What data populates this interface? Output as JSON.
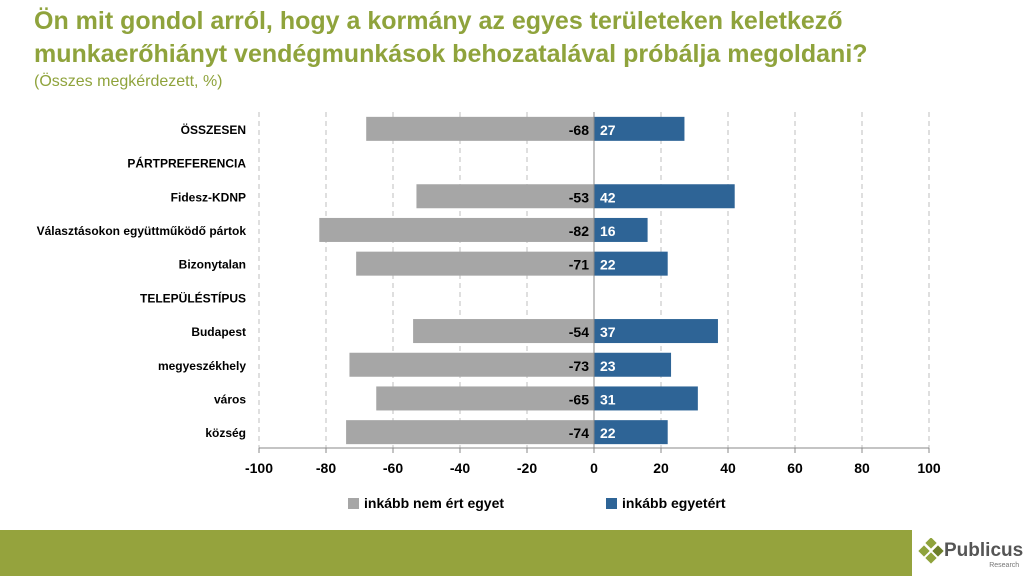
{
  "title_line1": "Ön mit gondol arról, hogy a kormány az egyes területeken keletkező",
  "title_line2": "munkaerőhiányt vendégmunkások behozatalával próbálja megoldani?",
  "subtitle": "(Összes megkérdezett, %)",
  "logo": {
    "name": "Publicus",
    "tagline": "Research"
  },
  "chart_data": {
    "type": "bar",
    "orientation": "horizontal-diverging",
    "categories": [
      "ÖSSZESEN",
      "PÁRTPREFERENCIA",
      "Fidesz-KDNP",
      "Választásokon együttműködő pártok",
      "Bizonytalan",
      "TELEPÜLÉSTÍPUS",
      "Budapest",
      "megyeszékhely",
      "város",
      "község"
    ],
    "series": [
      {
        "name": "inkább nem ért egyet",
        "color": "#a6a6a6",
        "values": [
          -68,
          null,
          -53,
          -82,
          -71,
          null,
          -54,
          -73,
          -65,
          -74
        ]
      },
      {
        "name": "inkább egyetért",
        "color": "#2e6496",
        "values": [
          27,
          null,
          42,
          16,
          22,
          null,
          37,
          23,
          31,
          22
        ]
      }
    ],
    "xlim": [
      -100,
      100
    ],
    "xticks": [
      -100,
      -80,
      -60,
      -40,
      -20,
      0,
      20,
      40,
      60,
      80,
      100
    ],
    "grid": "vertical dashed",
    "legend": "bottom"
  }
}
